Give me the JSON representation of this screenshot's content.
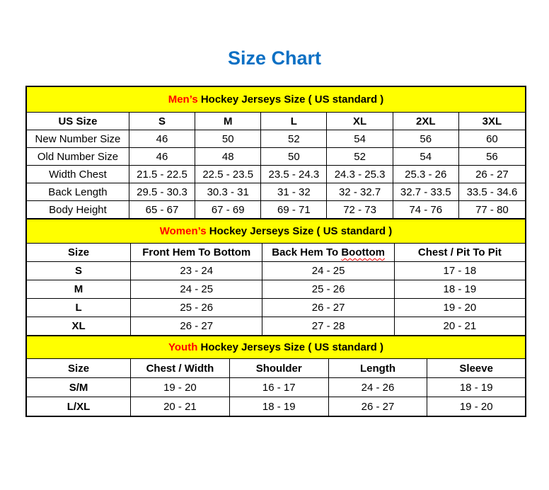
{
  "page": {
    "title": "Size Chart",
    "title_color": "#0C70C4",
    "background": "#FFFFFF"
  },
  "colors": {
    "banner_bg": "#FFFF00",
    "banner_highlight": "#FF0000",
    "squiggle": "#FF0000",
    "text": "#000000",
    "border": "#000000"
  },
  "tables": [
    {
      "id": "mens",
      "banner_highlight": "Men’s",
      "banner_text": " Hockey Jerseys Size ( US standard )",
      "columns": [
        "US Size",
        "S",
        "M",
        "L",
        "XL",
        "2XL",
        "3XL"
      ],
      "row_label_bold": false,
      "rows": [
        {
          "label": "New Number Size",
          "values": [
            "46",
            "50",
            "52",
            "54",
            "56",
            "60"
          ]
        },
        {
          "label": "Old Number Size",
          "values": [
            "46",
            "48",
            "50",
            "52",
            "54",
            "56"
          ]
        },
        {
          "label": "Width Chest",
          "values": [
            "21.5 - 22.5",
            "22.5 - 23.5",
            "23.5 - 24.3",
            "24.3 - 25.3",
            "25.3 - 26",
            "26 - 27"
          ]
        },
        {
          "label": "Back Length",
          "values": [
            "29.5 - 30.3",
            "30.3 - 31",
            "31 - 32",
            "32 - 32.7",
            "32.7 - 33.5",
            "33.5 - 34.6"
          ]
        },
        {
          "label": "Body Height",
          "values": [
            "65 - 67",
            "67 - 69",
            "69 - 71",
            "72 - 73",
            "74 - 76",
            "77 - 80"
          ]
        }
      ]
    },
    {
      "id": "womens",
      "banner_highlight": "Women’s",
      "banner_text": " Hockey Jerseys Size ( US standard )",
      "columns": [
        "Size",
        "Front Hem To Bottom",
        "Back Hem To Boottom",
        "Chest / Pit To Pit"
      ],
      "squiggle": {
        "column": 2,
        "word": "Boottom"
      },
      "row_label_bold": true,
      "rows": [
        {
          "label": "S",
          "values": [
            "23 - 24",
            "24 - 25",
            "17 - 18"
          ]
        },
        {
          "label": "M",
          "values": [
            "24 - 25",
            "25 - 26",
            "18 - 19"
          ]
        },
        {
          "label": "L",
          "values": [
            "25 - 26",
            "26 - 27",
            "19 - 20"
          ]
        },
        {
          "label": "XL",
          "values": [
            "26 - 27",
            "27 - 28",
            "20 - 21"
          ]
        }
      ]
    },
    {
      "id": "youth",
      "banner_highlight": "Youth",
      "banner_text": " Hockey Jerseys Size ( US standard )",
      "columns": [
        "Size",
        "Chest / Width",
        "Shoulder",
        "Length",
        "Sleeve"
      ],
      "row_label_bold": true,
      "rows": [
        {
          "label": "S/M",
          "values": [
            "19 - 20",
            "16 - 17",
            "24 - 26",
            "18 - 19"
          ]
        },
        {
          "label": "L/XL",
          "values": [
            "20 - 21",
            "18 - 19",
            "26 - 27",
            "19 - 20"
          ]
        }
      ]
    }
  ]
}
